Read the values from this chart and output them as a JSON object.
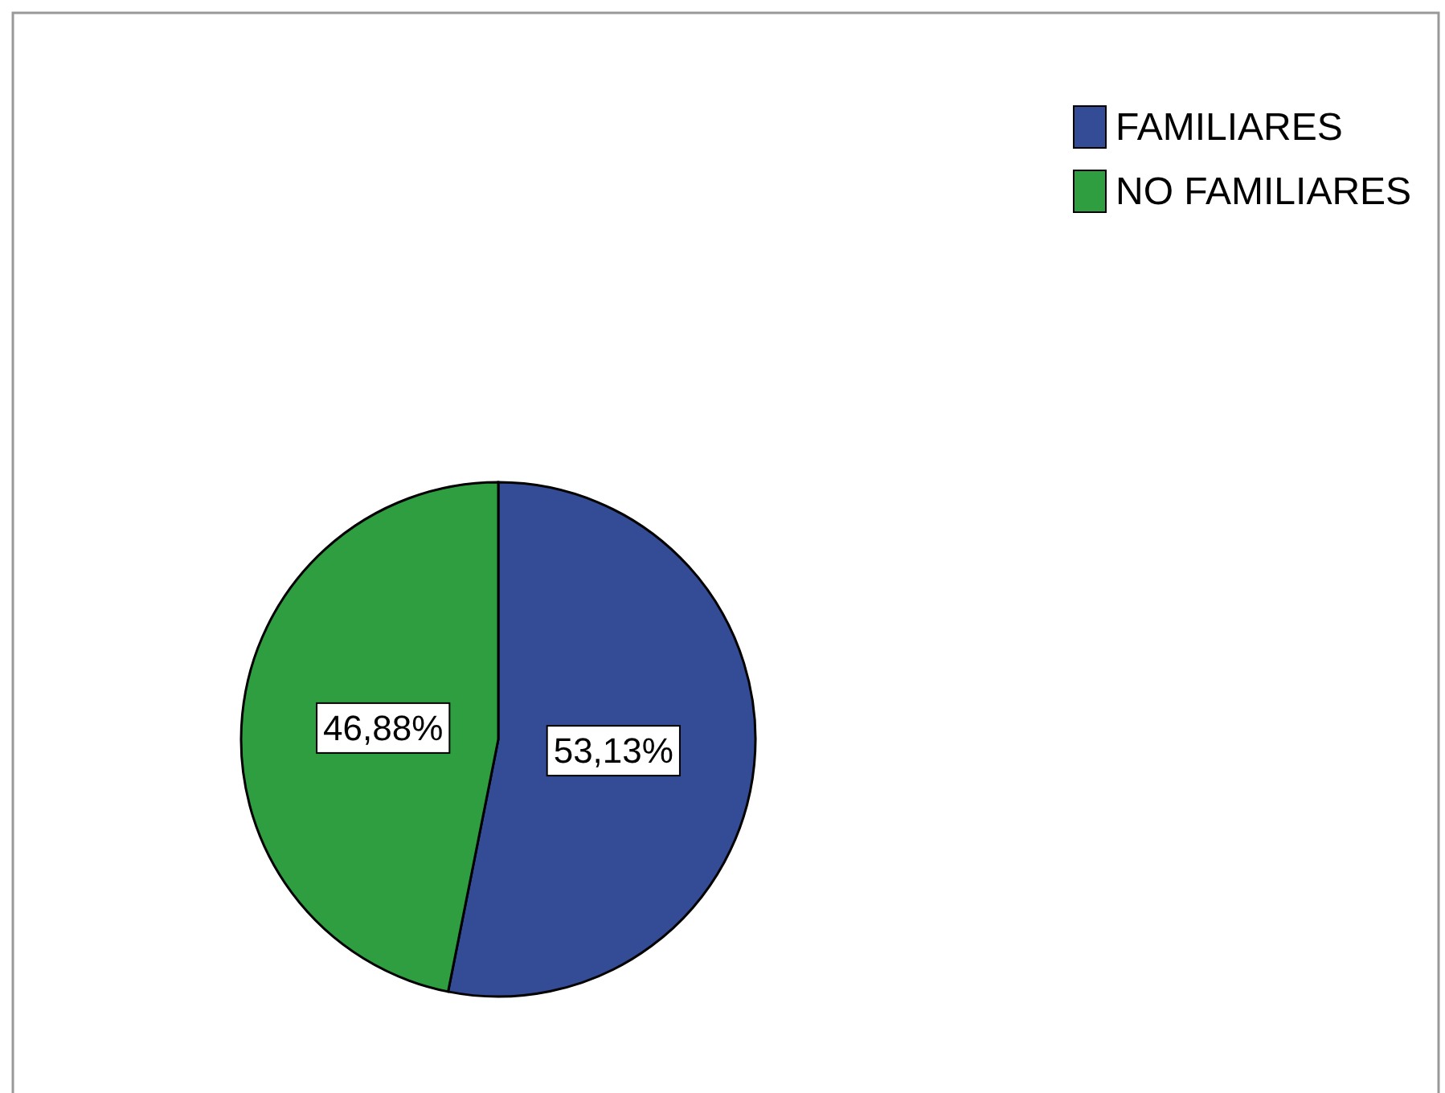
{
  "chart_data": {
    "type": "pie",
    "categories": [
      "FAMILIARES",
      "NO FAMILIARES"
    ],
    "values": [
      53.13,
      46.88
    ],
    "colors": [
      "#344c96",
      "#2f9e40"
    ],
    "value_labels": [
      "53,13%",
      "46,88%"
    ],
    "legend": "top right"
  }
}
